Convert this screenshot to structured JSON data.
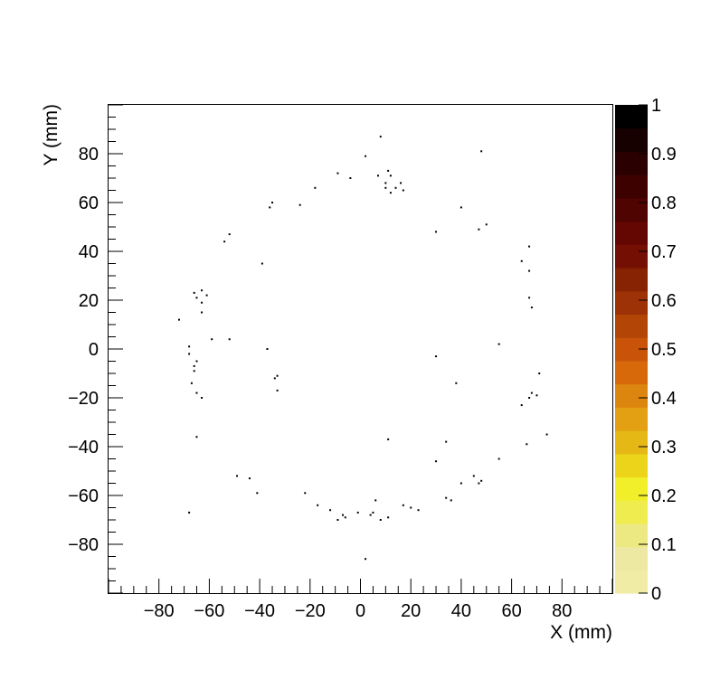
{
  "chart_data": {
    "type": "heatmap",
    "title": "",
    "xlabel": "X (mm)",
    "ylabel": "Y (mm)",
    "xlim": [
      -100,
      100
    ],
    "ylim": [
      -100,
      100
    ],
    "x_ticks": [
      -80,
      -60,
      -40,
      -20,
      0,
      20,
      40,
      60,
      80
    ],
    "y_ticks": [
      -80,
      -60,
      -40,
      -20,
      0,
      20,
      40,
      60,
      80
    ],
    "x_tick_labels": [
      "−80",
      "−60",
      "−40",
      "−20",
      "0",
      "20",
      "40",
      "60",
      "80"
    ],
    "y_tick_labels": [
      "−80",
      "−60",
      "−40",
      "−20",
      "0",
      "20",
      "40",
      "60",
      "80"
    ],
    "grid": false,
    "colorbar": {
      "range": [
        0,
        1
      ],
      "ticks": [
        0,
        0.1,
        0.2,
        0.3,
        0.4,
        0.5,
        0.6,
        0.7,
        0.8,
        0.9,
        1
      ],
      "tick_labels": [
        "0",
        "0.1",
        "0.2",
        "0.3",
        "0.4",
        "0.5",
        "0.6",
        "0.7",
        "0.8",
        "0.9",
        "1"
      ],
      "colors": [
        "#f0eca6",
        "#ede9a3",
        "#ece983",
        "#efec4f",
        "#f0ef2a",
        "#ecd41b",
        "#e6b816",
        "#e2a012",
        "#dd860f",
        "#d7690b",
        "#c95409",
        "#b34507",
        "#9c3205",
        "#872203",
        "#741003",
        "#640601",
        "#500401",
        "#3d0200",
        "#2a0100",
        "#170100",
        "#000000"
      ]
    },
    "points": [
      [
        8,
        87
      ],
      [
        2,
        79
      ],
      [
        48,
        81
      ],
      [
        -9,
        72
      ],
      [
        -4,
        70
      ],
      [
        11,
        73
      ],
      [
        12,
        71
      ],
      [
        7,
        71
      ],
      [
        10,
        68
      ],
      [
        10,
        66
      ],
      [
        16,
        68
      ],
      [
        14,
        66
      ],
      [
        17,
        65
      ],
      [
        12,
        64
      ],
      [
        -18,
        66
      ],
      [
        -36,
        58
      ],
      [
        -35,
        60
      ],
      [
        -24,
        59
      ],
      [
        40,
        58
      ],
      [
        50,
        51
      ],
      [
        47,
        49
      ],
      [
        30,
        48
      ],
      [
        -54,
        44
      ],
      [
        -52,
        47
      ],
      [
        67,
        42
      ],
      [
        -39,
        35
      ],
      [
        64,
        36
      ],
      [
        67,
        32
      ],
      [
        -66,
        23
      ],
      [
        -63,
        24
      ],
      [
        -61,
        22
      ],
      [
        -65,
        21
      ],
      [
        -63,
        19
      ],
      [
        -63,
        15
      ],
      [
        67,
        21
      ],
      [
        68,
        17
      ],
      [
        -72,
        12
      ],
      [
        -59,
        4
      ],
      [
        -52,
        4
      ],
      [
        -68,
        1
      ],
      [
        -68,
        -2
      ],
      [
        -37,
        0
      ],
      [
        55,
        2
      ],
      [
        30,
        -3
      ],
      [
        -65,
        -5
      ],
      [
        -66,
        -7
      ],
      [
        -66,
        -9
      ],
      [
        71,
        -10
      ],
      [
        -33,
        -11
      ],
      [
        -34,
        -12
      ],
      [
        -67,
        -14
      ],
      [
        38,
        -14
      ],
      [
        -33,
        -17
      ],
      [
        -65,
        -18
      ],
      [
        -63,
        -20
      ],
      [
        68,
        -18
      ],
      [
        70,
        -19
      ],
      [
        67,
        -20
      ],
      [
        64,
        -23
      ],
      [
        74,
        -35
      ],
      [
        -65,
        -36
      ],
      [
        11,
        -37
      ],
      [
        34,
        -38
      ],
      [
        66,
        -39
      ],
      [
        30,
        -46
      ],
      [
        55,
        -45
      ],
      [
        -49,
        -52
      ],
      [
        -44,
        -53
      ],
      [
        45,
        -52
      ],
      [
        48,
        -54
      ],
      [
        47,
        -55
      ],
      [
        40,
        -55
      ],
      [
        -41,
        -59
      ],
      [
        -22,
        -59
      ],
      [
        34,
        -61
      ],
      [
        36,
        -62
      ],
      [
        6,
        -62
      ],
      [
        -17,
        -64
      ],
      [
        17,
        -64
      ],
      [
        20,
        -65
      ],
      [
        23,
        -66
      ],
      [
        -12,
        -66
      ],
      [
        -7,
        -68
      ],
      [
        -1,
        -67
      ],
      [
        4,
        -68
      ],
      [
        5,
        -67
      ],
      [
        -68,
        -67
      ],
      [
        -6,
        -69
      ],
      [
        -9,
        -70
      ],
      [
        11,
        -69
      ],
      [
        8,
        -70
      ],
      [
        2,
        -86
      ]
    ]
  }
}
